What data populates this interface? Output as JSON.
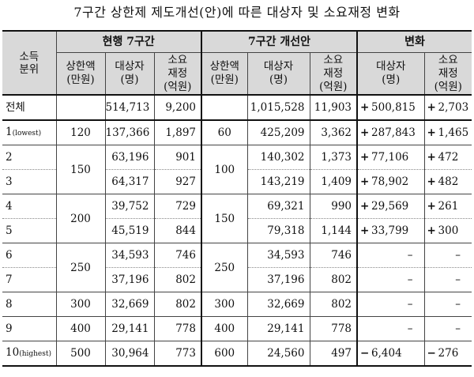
{
  "title": "7구간 상한제 제도개선(안)에 따른 대상자 및 소요재정 변화",
  "header": {
    "quintile": [
      "소득",
      "분위"
    ],
    "current_group": "현행 7구간",
    "improved_group": "7구간 개선안",
    "change_group": "변화",
    "cap": [
      "상한액",
      "(만원)"
    ],
    "target": [
      "대상자",
      "(명)"
    ],
    "budget": [
      "소요",
      "재정",
      "(억원)"
    ]
  },
  "rows": [
    {
      "label": "전체",
      "label_small": "",
      "cur_cap": "",
      "cur_target": "514,713",
      "cur_budget": "9,200",
      "new_cap": "",
      "new_target": "1,015,528",
      "new_budget": "11,903",
      "chg_target_sign": "+",
      "chg_target": "500,815",
      "chg_budget_sign": "+",
      "chg_budget": "2,703"
    },
    {
      "label": "1",
      "label_small": "(lowest)",
      "cur_cap": "120",
      "cur_target": "137,366",
      "cur_budget": "1,897",
      "new_cap": "60",
      "new_target": "425,209",
      "new_budget": "3,362",
      "chg_target_sign": "+",
      "chg_target": "287,843",
      "chg_budget_sign": "+",
      "chg_budget": "1,465"
    },
    {
      "label": "2",
      "label_small": "",
      "cur_cap": "150",
      "cur_target": "63,196",
      "cur_budget": "901",
      "new_cap": "100",
      "new_target": "140,302",
      "new_budget": "1,373",
      "chg_target_sign": "+",
      "chg_target": "77,106",
      "chg_budget_sign": "+",
      "chg_budget": "472"
    },
    {
      "label": "3",
      "label_small": "",
      "cur_cap": "",
      "cur_target": "64,317",
      "cur_budget": "927",
      "new_cap": "",
      "new_target": "143,219",
      "new_budget": "1,409",
      "chg_target_sign": "+",
      "chg_target": "78,902",
      "chg_budget_sign": "+",
      "chg_budget": "482"
    },
    {
      "label": "4",
      "label_small": "",
      "cur_cap": "200",
      "cur_target": "39,752",
      "cur_budget": "729",
      "new_cap": "150",
      "new_target": "69,321",
      "new_budget": "990",
      "chg_target_sign": "+",
      "chg_target": "29,569",
      "chg_budget_sign": "+",
      "chg_budget": "261"
    },
    {
      "label": "5",
      "label_small": "",
      "cur_cap": "",
      "cur_target": "45,519",
      "cur_budget": "844",
      "new_cap": "",
      "new_target": "79,318",
      "new_budget": "1,144",
      "chg_target_sign": "+",
      "chg_target": "33,799",
      "chg_budget_sign": "+",
      "chg_budget": "300"
    },
    {
      "label": "6",
      "label_small": "",
      "cur_cap": "250",
      "cur_target": "34,593",
      "cur_budget": "746",
      "new_cap": "250",
      "new_target": "34,593",
      "new_budget": "746",
      "chg_target_sign": "",
      "chg_target": "–",
      "chg_budget_sign": "",
      "chg_budget": "–"
    },
    {
      "label": "7",
      "label_small": "",
      "cur_cap": "",
      "cur_target": "37,196",
      "cur_budget": "802",
      "new_cap": "",
      "new_target": "37,196",
      "new_budget": "802",
      "chg_target_sign": "",
      "chg_target": "–",
      "chg_budget_sign": "",
      "chg_budget": "–"
    },
    {
      "label": "8",
      "label_small": "",
      "cur_cap": "300",
      "cur_target": "32,669",
      "cur_budget": "802",
      "new_cap": "300",
      "new_target": "32,669",
      "new_budget": "802",
      "chg_target_sign": "",
      "chg_target": "–",
      "chg_budget_sign": "",
      "chg_budget": "–"
    },
    {
      "label": "9",
      "label_small": "",
      "cur_cap": "400",
      "cur_target": "29,141",
      "cur_budget": "778",
      "new_cap": "400",
      "new_target": "29,141",
      "new_budget": "778",
      "chg_target_sign": "",
      "chg_target": "–",
      "chg_budget_sign": "",
      "chg_budget": "–"
    },
    {
      "label": "10",
      "label_small": "(highest)",
      "cur_cap": "500",
      "cur_target": "30,964",
      "cur_budget": "773",
      "new_cap": "600",
      "new_target": "24,560",
      "new_budget": "497",
      "chg_target_sign": "−",
      "chg_target": "6,404",
      "chg_budget_sign": "−",
      "chg_budget": "276"
    }
  ]
}
